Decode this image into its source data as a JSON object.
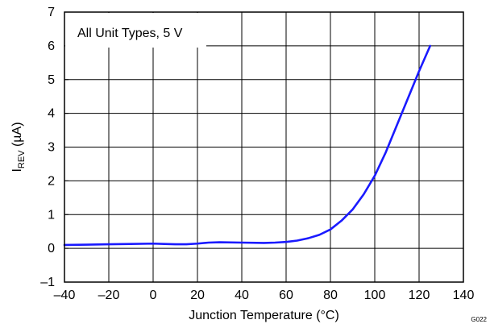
{
  "chart_data": {
    "type": "line",
    "annotation": "All Unit Types, 5 V",
    "xlabel": "Junction Temperature (°C)",
    "ylabel_main": "I",
    "ylabel_sub": "REV",
    "ylabel_rest": " (µA)",
    "figure_id": "G022",
    "xlim": [
      -40,
      140
    ],
    "ylim": [
      -1,
      7
    ],
    "xticks": [
      -40,
      -20,
      0,
      20,
      40,
      60,
      80,
      100,
      120,
      140
    ],
    "yticks": [
      -1,
      0,
      1,
      2,
      3,
      4,
      5,
      6,
      7
    ],
    "xtick_labels": [
      "–40",
      "–20",
      "0",
      "20",
      "40",
      "60",
      "80",
      "100",
      "120",
      "140"
    ],
    "ytick_labels": [
      "–1",
      "0",
      "1",
      "2",
      "3",
      "4",
      "5",
      "6",
      "7"
    ],
    "grid": true,
    "line_color": "#1a1aff",
    "series": [
      {
        "x": [
          -40,
          -30,
          -20,
          -10,
          0,
          5,
          10,
          15,
          20,
          25,
          30,
          40,
          50,
          55,
          60,
          65,
          70,
          75,
          80,
          85,
          90,
          95,
          100,
          105,
          110,
          115,
          120,
          125
        ],
        "y": [
          0.1,
          0.11,
          0.12,
          0.13,
          0.14,
          0.13,
          0.12,
          0.12,
          0.14,
          0.17,
          0.18,
          0.17,
          0.16,
          0.17,
          0.19,
          0.23,
          0.3,
          0.4,
          0.56,
          0.82,
          1.15,
          1.6,
          2.15,
          2.85,
          3.65,
          4.45,
          5.25,
          6.0
        ]
      }
    ]
  }
}
